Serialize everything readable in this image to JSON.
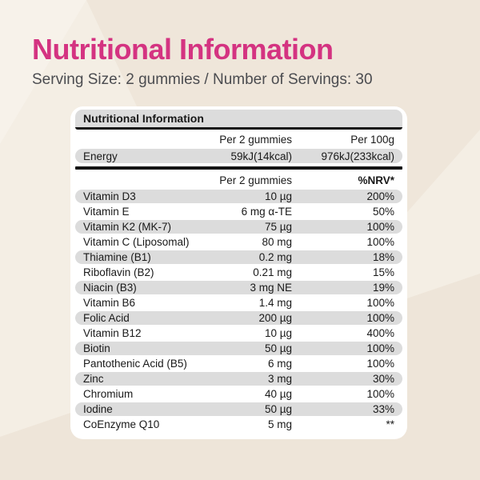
{
  "page": {
    "title": "Nutritional Information",
    "serving_line": "Serving Size: 2 gummies  / Number of Servings: 30"
  },
  "colors": {
    "accent_pink": "#d43381",
    "subtitle_gray": "#4b4c50",
    "row_stripe_gray": "#dcdcdc",
    "background_beige": "#f4eee4",
    "card_white": "#ffffff",
    "rule_black": "#141414"
  },
  "table": {
    "header": "Nutritional Information",
    "energy_section": {
      "col_per_serving": "Per 2 gummies",
      "col_per_100g": "Per 100g",
      "row": {
        "label": "Energy",
        "per_serving": "59kJ(14kcal)",
        "per_100g": "976kJ(233kcal)"
      }
    },
    "nutrient_section": {
      "col_per_serving": "Per 2  gummies",
      "col_nrv": "%NRV*",
      "rows": [
        {
          "label": "Vitamin D3",
          "amount": "10 µg",
          "nrv": "200%"
        },
        {
          "label": "Vitamin E",
          "amount": "6 mg α-TE",
          "nrv": "50%"
        },
        {
          "label": "Vitamin K2 (MK-7)",
          "amount": "75 µg",
          "nrv": "100%"
        },
        {
          "label": "Vitamin C (Liposomal)",
          "amount": "80 mg",
          "nrv": "100%"
        },
        {
          "label": "Thiamine (B1)",
          "amount": "0.2 mg",
          "nrv": "18%"
        },
        {
          "label": "Riboflavin (B2)",
          "amount": "0.21 mg",
          "nrv": "15%"
        },
        {
          "label": "Niacin (B3)",
          "amount": "3 mg NE",
          "nrv": "19%"
        },
        {
          "label": "Vitamin B6",
          "amount": "1.4 mg",
          "nrv": "100%"
        },
        {
          "label": "Folic Acid",
          "amount": "200 µg",
          "nrv": "100%"
        },
        {
          "label": "Vitamin B12",
          "amount": "10 µg",
          "nrv": "400%"
        },
        {
          "label": "Biotin",
          "amount": "50 µg",
          "nrv": "100%"
        },
        {
          "label": "Pantothenic Acid (B5)",
          "amount": "6 mg",
          "nrv": "100%"
        },
        {
          "label": "Zinc",
          "amount": "3 mg",
          "nrv": "30%"
        },
        {
          "label": "Chromium",
          "amount": "40 µg",
          "nrv": "100%"
        },
        {
          "label": "Iodine",
          "amount": "50 µg",
          "nrv": "33%"
        },
        {
          "label": "CoEnzyme Q10",
          "amount": "5 mg",
          "nrv": "**"
        }
      ]
    }
  }
}
